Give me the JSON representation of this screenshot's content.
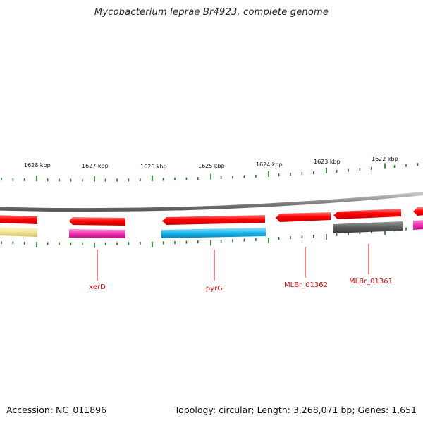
{
  "header": {
    "title": "Mycobacterium leprae Br4923, complete genome"
  },
  "footer": {
    "accession": "Accession: NC_011896",
    "stats": "Topology: circular; Length: 3,268,071 bp; Genes: 1,651"
  },
  "colors": {
    "backbone": "#8a8a8a",
    "forward_cds": "#ff0000",
    "tick": "#1a7a1a",
    "label": "#cc1111",
    "magenta": "#ee2fb4",
    "cyan": "#19b6ea",
    "gray": "#5e5e5e",
    "yellow": "#f1e79a"
  },
  "scale_labels": [
    "1628 kbp",
    "1627 kbp",
    "1626 kbp",
    "1625 kbp",
    "1624 kbp",
    "1623 kbp",
    "1622 kbp"
  ],
  "gene_labels": [
    "xerD",
    "pyrG",
    "MLBr_01362",
    "MLBr_01361"
  ]
}
